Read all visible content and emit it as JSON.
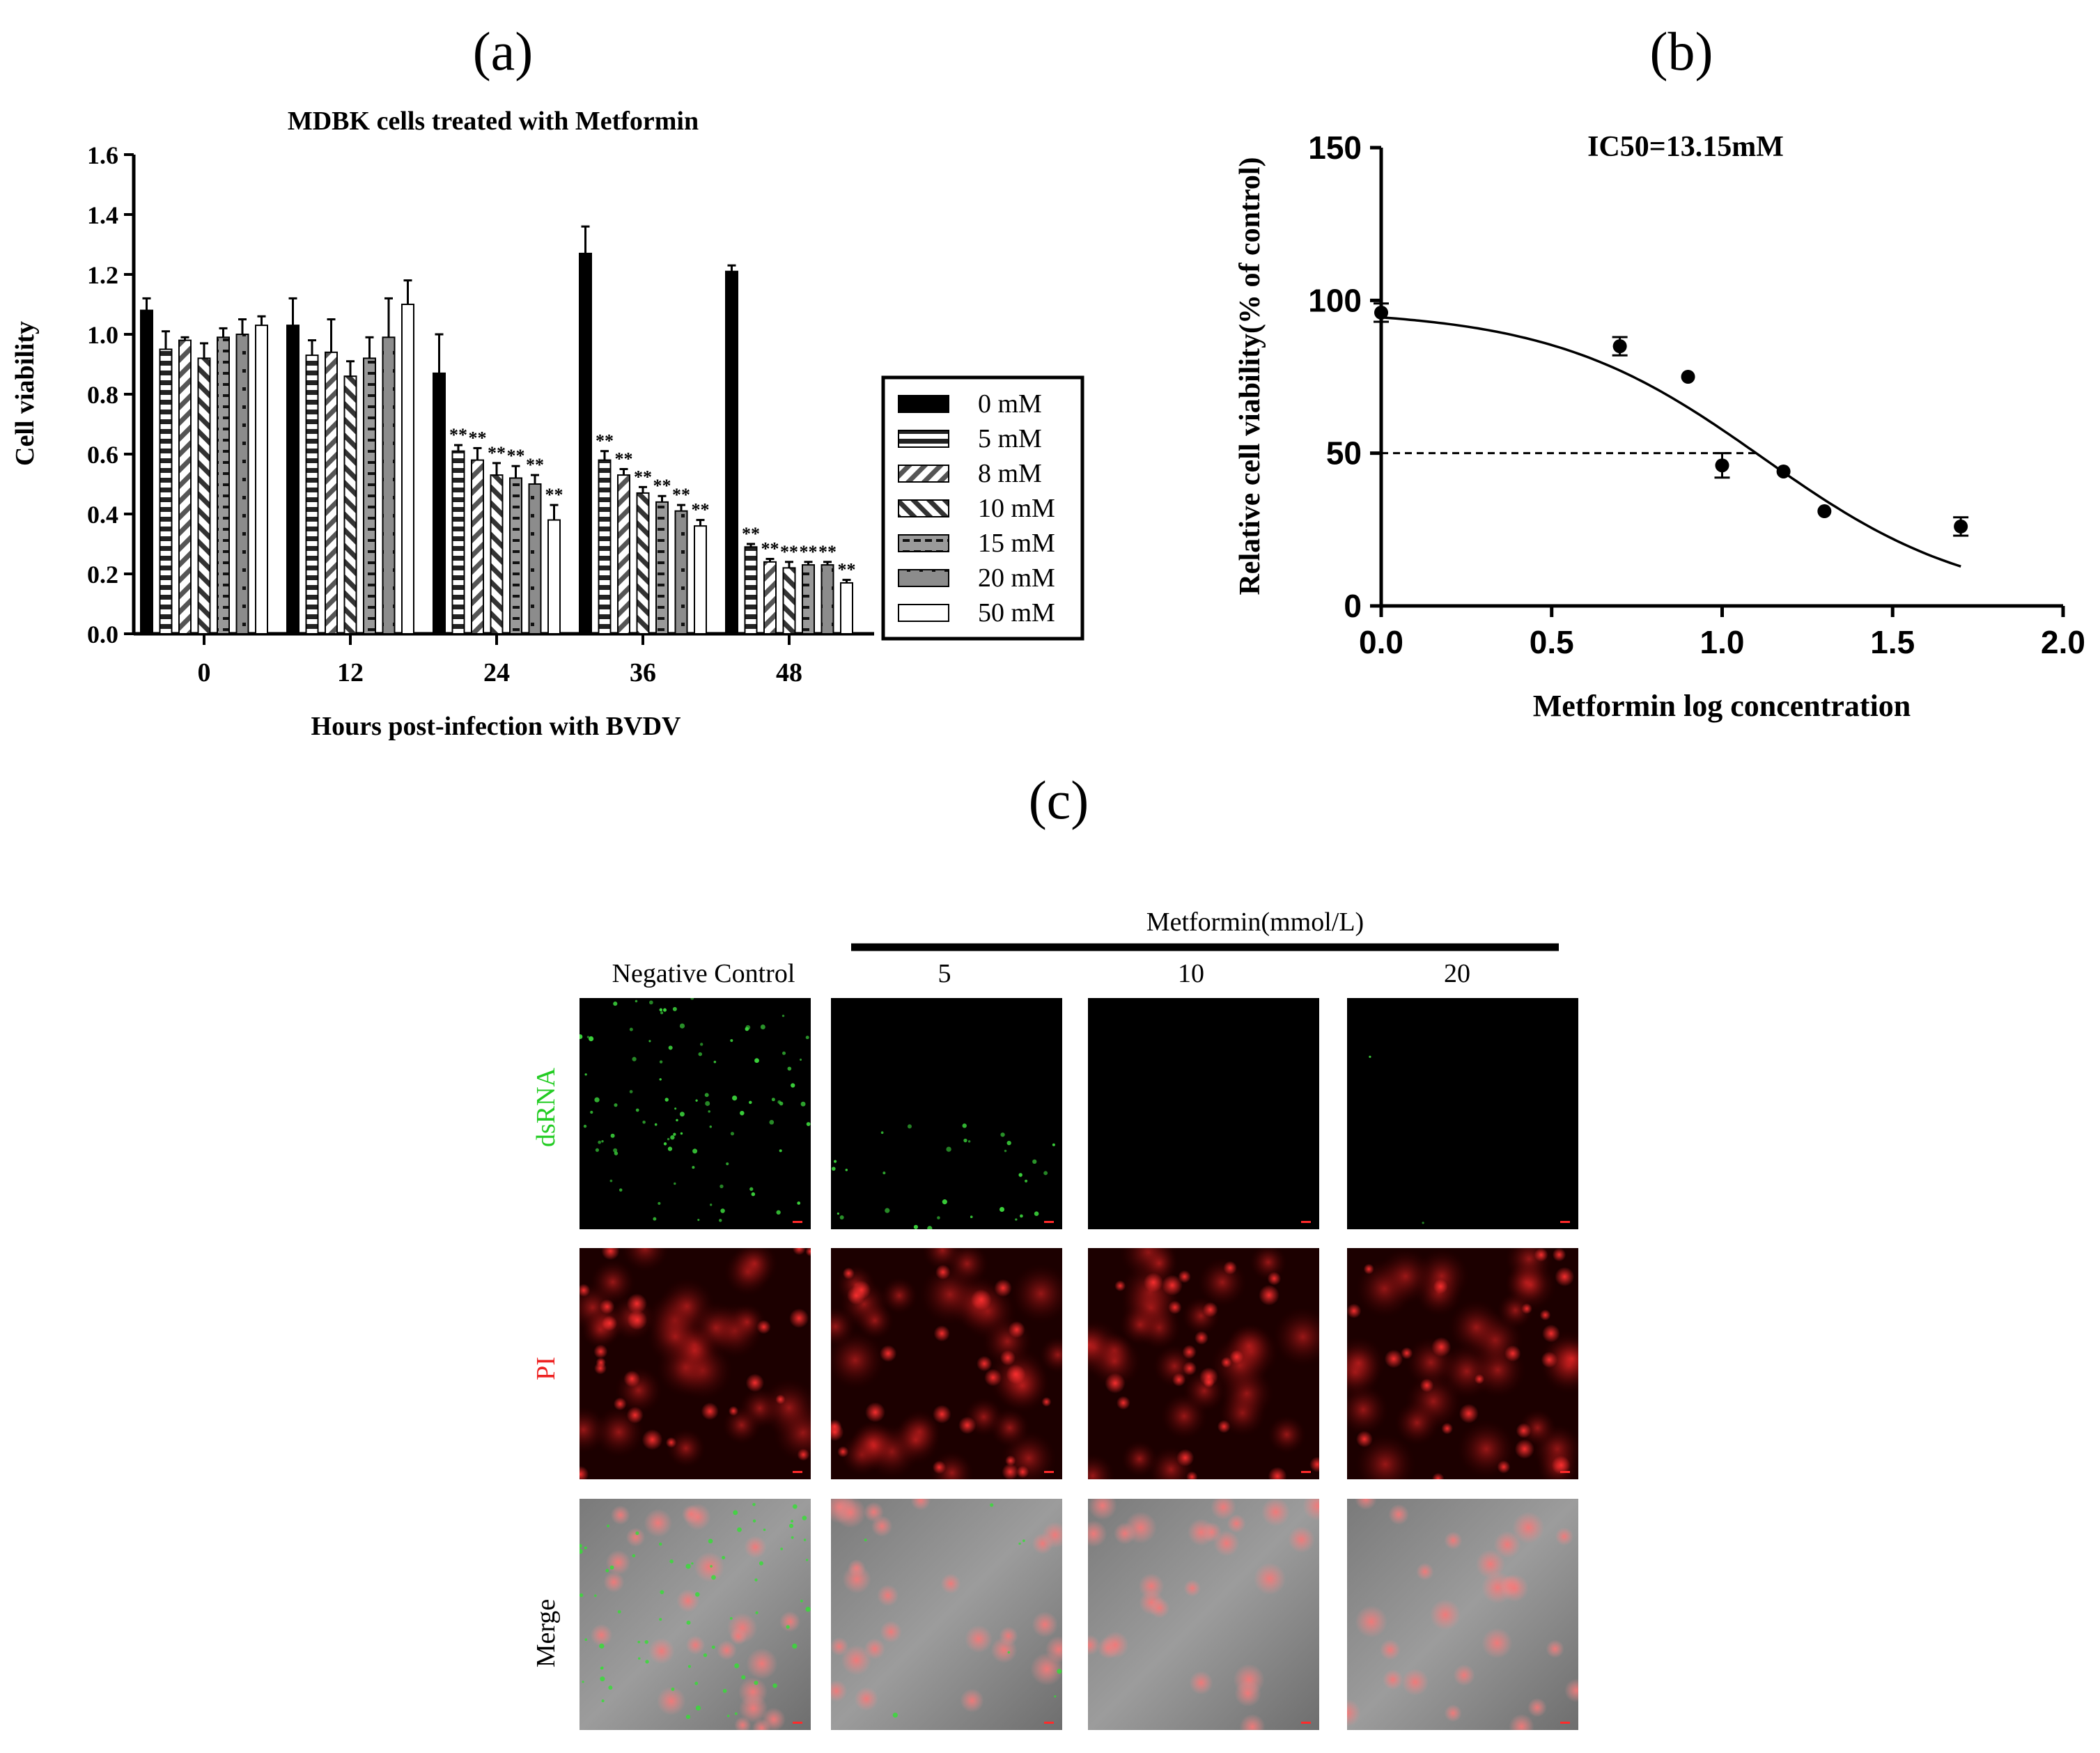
{
  "panels": {
    "a": "(a)",
    "b": "(b)",
    "c": "(c)"
  },
  "chart_data": [
    {
      "type": "bar",
      "title": "MDBK cells treated with Metformin",
      "xlabel": "Hours post-infection with BVDV",
      "ylabel": "Cell viability",
      "ylim": [
        0,
        1.6
      ],
      "yticks": [
        "0.0",
        "0.2",
        "0.4",
        "0.6",
        "0.8",
        "1.0",
        "1.2",
        "1.4",
        "1.6"
      ],
      "categories": [
        "0",
        "12",
        "24",
        "36",
        "48"
      ],
      "legend_position": "right",
      "significance_mark": "**",
      "series": [
        {
          "name": "0 mM",
          "pattern": "solid-black",
          "values": [
            1.08,
            1.03,
            0.87,
            1.27,
            1.21
          ],
          "errors": [
            0.04,
            0.09,
            0.13,
            0.09,
            0.02
          ],
          "sig": [
            false,
            false,
            false,
            false,
            false
          ]
        },
        {
          "name": "5 mM",
          "pattern": "horizontal-stripes",
          "values": [
            0.95,
            0.93,
            0.61,
            0.58,
            0.29
          ],
          "errors": [
            0.06,
            0.05,
            0.02,
            0.03,
            0.01
          ],
          "sig": [
            false,
            false,
            true,
            true,
            true
          ]
        },
        {
          "name": "8 mM",
          "pattern": "diagonal-up",
          "values": [
            0.98,
            0.94,
            0.58,
            0.53,
            0.24
          ],
          "errors": [
            0.01,
            0.11,
            0.04,
            0.02,
            0.01
          ],
          "sig": [
            false,
            false,
            true,
            true,
            true
          ]
        },
        {
          "name": "10 mM",
          "pattern": "diagonal-down",
          "values": [
            0.92,
            0.86,
            0.53,
            0.47,
            0.22
          ],
          "errors": [
            0.05,
            0.05,
            0.04,
            0.02,
            0.02
          ],
          "sig": [
            false,
            false,
            true,
            true,
            true
          ]
        },
        {
          "name": "15 mM",
          "pattern": "dashed-stripes",
          "values": [
            0.99,
            0.92,
            0.52,
            0.44,
            0.23
          ],
          "errors": [
            0.03,
            0.07,
            0.04,
            0.02,
            0.01
          ],
          "sig": [
            false,
            false,
            true,
            true,
            true
          ]
        },
        {
          "name": "20 mM",
          "pattern": "gray-dots",
          "values": [
            1.0,
            0.99,
            0.5,
            0.41,
            0.23
          ],
          "errors": [
            0.05,
            0.13,
            0.03,
            0.02,
            0.01
          ],
          "sig": [
            false,
            false,
            true,
            true,
            true
          ]
        },
        {
          "name": "50 mM",
          "pattern": "white",
          "values": [
            1.03,
            1.1,
            0.38,
            0.36,
            0.17
          ],
          "errors": [
            0.03,
            0.08,
            0.05,
            0.02,
            0.01
          ],
          "sig": [
            false,
            false,
            true,
            true,
            true
          ]
        }
      ]
    },
    {
      "type": "scatter",
      "title": "IC50=13.15mM",
      "xlabel": "Metformin log concentration",
      "ylabel": "Relative cell viability(% of control)",
      "xlim": [
        0,
        2.0
      ],
      "ylim": [
        0,
        150
      ],
      "xticks": [
        "0.0",
        "0.5",
        "1.0",
        "1.5",
        "2.0"
      ],
      "yticks": [
        "0",
        "50",
        "100",
        "150"
      ],
      "points": [
        {
          "x": 0.0,
          "y": 96,
          "err": 3
        },
        {
          "x": 0.7,
          "y": 85,
          "err": 3
        },
        {
          "x": 0.9,
          "y": 75,
          "err": 0
        },
        {
          "x": 1.0,
          "y": 46,
          "err": 4
        },
        {
          "x": 1.18,
          "y": 44,
          "err": 0
        },
        {
          "x": 1.3,
          "y": 31,
          "err": 0
        },
        {
          "x": 1.7,
          "y": 26,
          "err": 3
        }
      ],
      "fit": {
        "top": 97,
        "bottom": 0,
        "log_ic50": 1.119,
        "hill": -1.4,
        "x_from": 0.0,
        "x_to": 1.7
      },
      "reference_line_y": 50
    }
  ],
  "microscopy": {
    "treatment_label": "Metformin(mmol/L)",
    "columns": [
      "Negative Control",
      "5",
      "10",
      "20"
    ],
    "rows": [
      {
        "label": "dsRNA",
        "color": "#22cc22"
      },
      {
        "label": "PI",
        "color": "#ee2222"
      },
      {
        "label": "Merge",
        "color": "#000000"
      }
    ]
  }
}
